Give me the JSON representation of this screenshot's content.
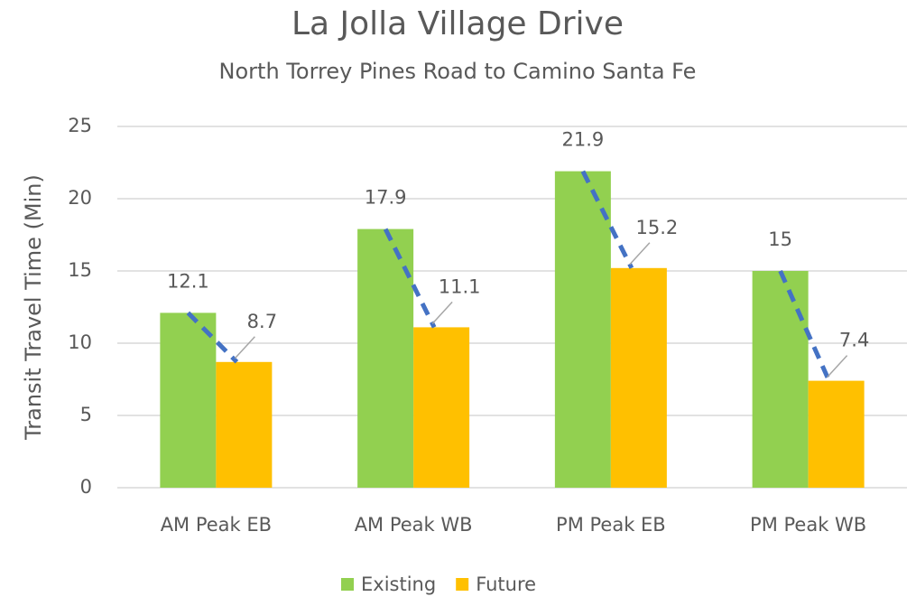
{
  "chart_data": {
    "type": "bar",
    "title": "La Jolla Village Drive",
    "subtitle": "North Torrey Pines Road to Camino Santa Fe",
    "y_label": "Transit Travel Time (Min)",
    "categories": [
      "AM Peak EB",
      "AM Peak WB",
      "PM Peak EB",
      "PM Peak WB"
    ],
    "series": [
      {
        "name": "Existing",
        "color": "#92d050",
        "values": [
          12.1,
          17.9,
          21.9,
          15
        ]
      },
      {
        "name": "Future",
        "color": "#ffc000",
        "values": [
          8.7,
          11.1,
          15.2,
          7.4
        ]
      }
    ],
    "ylim": [
      0,
      25
    ],
    "yticks": [
      0,
      5,
      10,
      15,
      20,
      25
    ],
    "grid": true,
    "legend": "bottom",
    "trend_color": "#4472c4"
  }
}
